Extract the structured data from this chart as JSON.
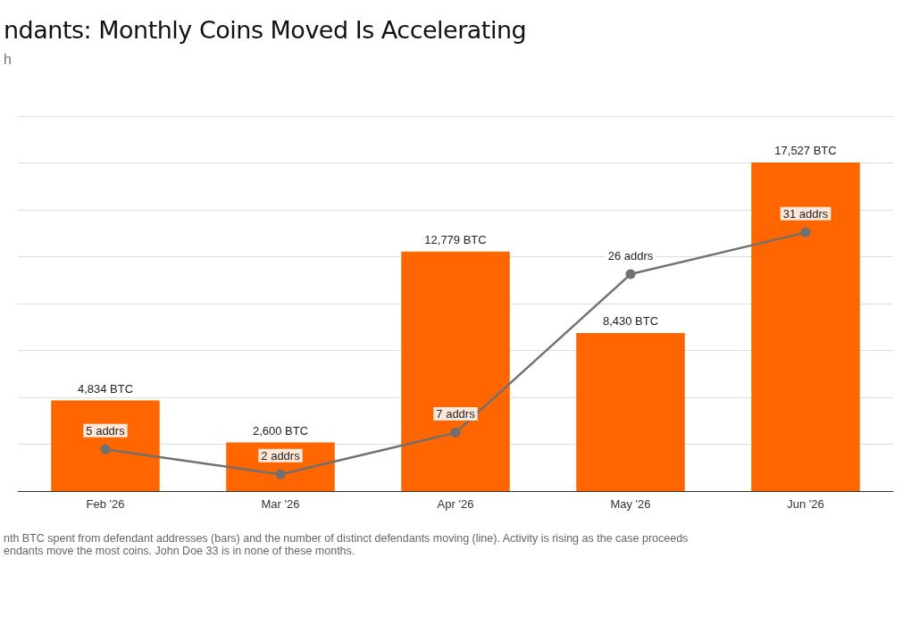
{
  "chart_data": {
    "type": "bar",
    "title": "ndants: Monthly Coins Moved Is Accelerating",
    "subtitle": "h",
    "categories": [
      "Feb '26",
      "Mar '26",
      "Apr '26",
      "May '26",
      "Jun '26"
    ],
    "series": [
      {
        "color": "#ff6600",
        "values": [
          4834,
          2600,
          12779,
          8430,
          17527
        ],
        "value_labels": [
          "4,834 BTC",
          "2,600 BTC",
          "12,779 BTC",
          "8,430 BTC",
          "17,527 BTC"
        ]
      },
      {
        "type": "line",
        "axis": "y2",
        "color": "#707070",
        "values": [
          5,
          2,
          7,
          26,
          31
        ],
        "value_labels": [
          "5 addrs",
          "2 addrs",
          "7 addrs",
          "26 addrs",
          "31 addrs"
        ]
      }
    ],
    "ylim": [
      0,
      20000
    ],
    "yticks": [
      {
        "value": 0,
        "label": null
      },
      {
        "value": 2500,
        "label": null
      },
      {
        "value": 5000,
        "label": null
      },
      {
        "value": 7500,
        "label": null
      },
      {
        "value": 10000,
        "label": null
      },
      {
        "value": 12500,
        "label": null
      },
      {
        "value": 15000,
        "label": null
      },
      {
        "value": 17500,
        "label": null
      },
      {
        "value": 20000,
        "label": null
      }
    ],
    "tick_labels": "x",
    "grid": "y",
    "marker": "circle",
    "line_style": "solid",
    "annotations": [
      "nth BTC spent from defendant addresses (bars) and the number of distinct defendants moving (line). Activity is rising as the case proceeds",
      "endants move the most coins. John Doe 33 is in none of these months."
    ]
  }
}
